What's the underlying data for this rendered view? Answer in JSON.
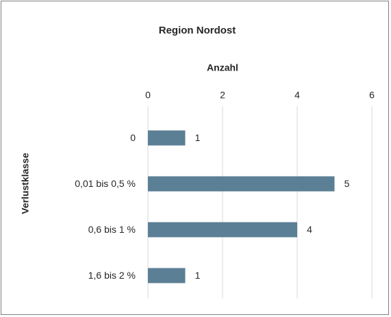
{
  "chart_data": {
    "type": "bar",
    "orientation": "horizontal",
    "title": "Region Nordost",
    "x_label": "Anzahl",
    "y_label": "Verlustklasse",
    "categories": [
      "0",
      "0,01 bis 0,5 %",
      "0,6 bis 1 %",
      "1,6 bis 2 %"
    ],
    "values": [
      1,
      5,
      4,
      1
    ],
    "color": "#5b7f95",
    "xlim": [
      0,
      6
    ],
    "xticks": [
      0,
      2,
      4,
      6
    ],
    "grid": true,
    "x_axis_position": "top"
  }
}
